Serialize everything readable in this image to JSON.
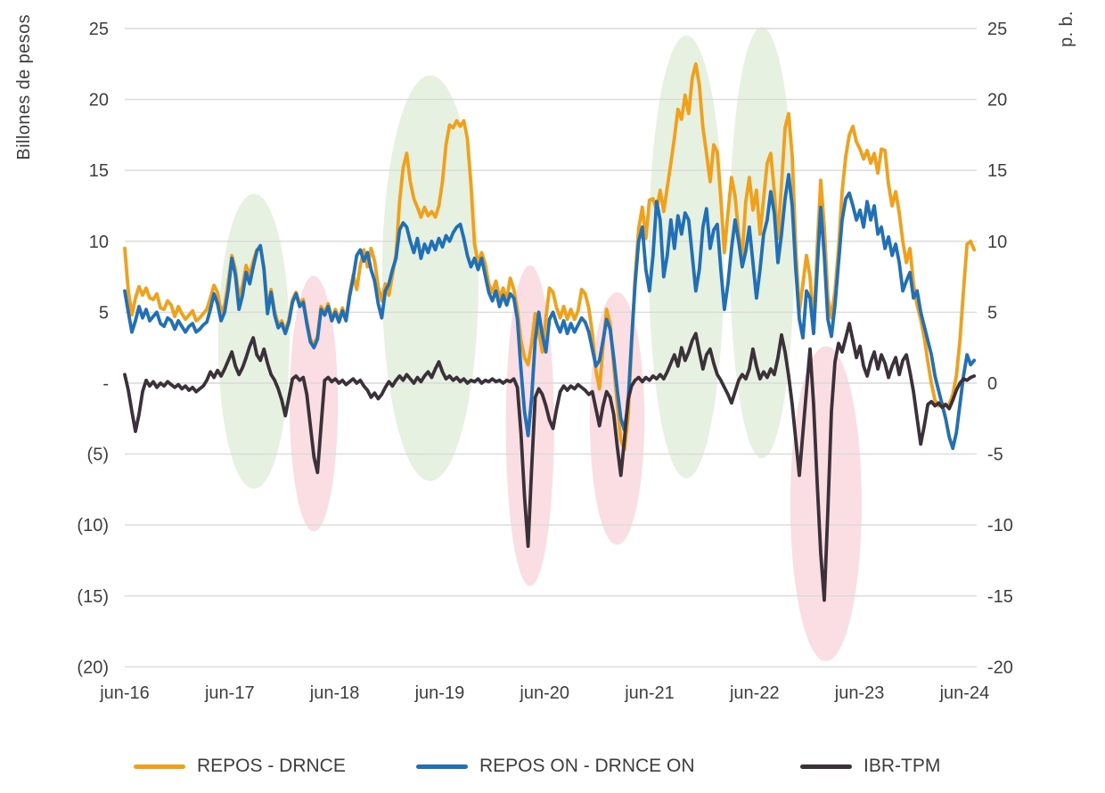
{
  "figure": {
    "left_axis_title": "Billones de pesos",
    "right_axis_title": "p. b.",
    "background": "#ffffff",
    "gridline_color": "#d9d9d9",
    "tick_text_color": "#3e3e3e"
  },
  "chart_data": {
    "type": "line",
    "title": "",
    "xlabel": "",
    "ylabel_left": "Billones de pesos",
    "ylabel_right": "p. b.",
    "grid": true,
    "legend_position": "bottom",
    "ylim": [
      -20,
      25
    ],
    "tick_values": [
      25,
      20,
      15,
      10,
      5,
      0,
      -5,
      -10,
      -15,
      -20
    ],
    "left_tick_labels": [
      "25",
      "20",
      "15",
      "10",
      "5",
      "-",
      "(5)",
      "(10)",
      "(15)",
      "(20)"
    ],
    "right_tick_labels": [
      "25",
      "20",
      "15",
      "10",
      "5",
      "0",
      "-5",
      "-10",
      "-15",
      "-20"
    ],
    "x_year_ticks": [
      0,
      1,
      2,
      3,
      4,
      5,
      6,
      7,
      8
    ],
    "x_tick_labels": [
      "jun-16",
      "jun-17",
      "jun-18",
      "jun-19",
      "jun-20",
      "jun-21",
      "jun-22",
      "jun-23",
      "jun-24"
    ],
    "t0": 0,
    "dt": 0.034,
    "series": [
      {
        "name": "REPOS - DRNCE",
        "color": "#F2A018",
        "axis": "left",
        "values": [
          9.5,
          6.5,
          4.8,
          6,
          6.8,
          6.2,
          6.7,
          6,
          5.9,
          6.3,
          5.3,
          5.2,
          5.8,
          5.5,
          4.7,
          5.4,
          4.9,
          4.5,
          4.8,
          5.1,
          4.4,
          4.6,
          4.9,
          5.2,
          6,
          6.9,
          6.4,
          5,
          5.5,
          7.2,
          9,
          8,
          6,
          6.9,
          8.3,
          7.6,
          8.6,
          9.4,
          9.6,
          8.2,
          5.2,
          6.6,
          5.1,
          4.1,
          4.4,
          3.7,
          4.5,
          5.9,
          6.4,
          5.6,
          5.9,
          4.4,
          3.1,
          2.7,
          3.3,
          5.4,
          5,
          5.6,
          4.6,
          5.2,
          4.5,
          5.3,
          4.5,
          6.3,
          7.6,
          6.6,
          8.3,
          9.4,
          8.2,
          9.5,
          8.6,
          6.8,
          5.8,
          7,
          6.2,
          7.6,
          9.1,
          12.8,
          15.2,
          16.2,
          14.2,
          13,
          12.4,
          11.7,
          12.4,
          11.8,
          12.1,
          11.7,
          12.5,
          14.2,
          16.8,
          18.2,
          18,
          18.5,
          18.1,
          18.5,
          17.2,
          14,
          9.8,
          8.5,
          9.2,
          8.4,
          7,
          6.4,
          7.2,
          6,
          6.7,
          5.9,
          7.4,
          6.6,
          5.2,
          3,
          1.8,
          1.3,
          2.8,
          4.9,
          3.6,
          2.2,
          4.6,
          6.7,
          6.4,
          5.3,
          4.6,
          5.4,
          4.5,
          5.2,
          4.5,
          5.1,
          6.6,
          6.3,
          5.3,
          3.5,
          0.9,
          -0.4,
          2.6,
          5.2,
          4.2,
          1.2,
          -1.5,
          -4,
          -4.7,
          -2.5,
          2.5,
          7.5,
          10.9,
          12.4,
          10.2,
          12.9,
          13,
          12.2,
          13.6,
          12.1,
          13.8,
          15.5,
          17.3,
          19.3,
          18.6,
          20.3,
          19,
          21.5,
          22.5,
          21,
          18,
          16.2,
          14.2,
          16.8,
          16.3,
          13,
          9.2,
          12,
          14.5,
          13.2,
          10.5,
          9,
          12.8,
          14.5,
          12.2,
          13.6,
          10.5,
          13,
          15.5,
          16.2,
          13.5,
          10.2,
          14,
          18,
          19,
          16,
          9.5,
          5,
          7,
          9,
          7.5,
          4,
          9.5,
          14.3,
          11,
          6,
          4.6,
          6.5,
          9.5,
          13.5,
          16,
          17.5,
          18.1,
          17,
          16.5,
          15.8,
          16.4,
          15.5,
          16.2,
          14.8,
          16.5,
          16.4,
          14,
          12.5,
          13.5,
          12,
          10,
          8.5,
          9.5,
          7,
          5.5,
          4.5,
          3.2,
          1.5,
          0,
          -1.2,
          -1.6,
          -1.4,
          -1.6,
          -1.5,
          -0.8,
          0.5,
          3,
          6.5,
          9.8,
          10,
          9.4
        ]
      },
      {
        "name": "REPOS ON - DRNCE ON",
        "color": "#1F70B8",
        "axis": "left",
        "values": [
          6.5,
          5,
          3.6,
          4.4,
          5.4,
          4.6,
          5.2,
          4.4,
          4.7,
          5,
          4.2,
          4,
          4.6,
          4.4,
          3.8,
          4.4,
          4,
          3.6,
          4,
          4.2,
          3.6,
          3.8,
          4.1,
          4.3,
          5.2,
          6.3,
          5.6,
          4.4,
          5,
          6.6,
          8.8,
          7.6,
          5.2,
          6.2,
          7.8,
          7,
          8.2,
          9.3,
          9.7,
          8,
          4.9,
          6.4,
          4.8,
          3.9,
          4.2,
          3.5,
          4.3,
          5.7,
          6.3,
          5.4,
          5.7,
          4.2,
          2.9,
          2.5,
          3.1,
          5.2,
          4.8,
          5.4,
          4.4,
          5,
          4.3,
          5.1,
          4.4,
          6.1,
          7.4,
          9,
          9.4,
          8.6,
          9.2,
          8,
          7.2,
          5.6,
          4.6,
          6.5,
          7,
          8,
          8.8,
          10.8,
          11.3,
          11,
          10,
          9.2,
          10.2,
          8.8,
          9.8,
          9.2,
          10,
          9.4,
          10.2,
          9.6,
          10.4,
          10,
          10.6,
          11,
          11.2,
          10.2,
          9,
          8.2,
          8.8,
          8,
          8.8,
          7.6,
          6.4,
          5.8,
          6.5,
          5.4,
          6.2,
          5.5,
          6.3,
          6,
          4.5,
          1,
          -2,
          -3.7,
          -1,
          3,
          5,
          3.4,
          2.2,
          4.5,
          5,
          4.2,
          3.6,
          4.4,
          3.5,
          4.2,
          3.6,
          4.1,
          4.6,
          4.3,
          3.6,
          2.4,
          1.2,
          1.6,
          3,
          4.5,
          3.8,
          1.8,
          -0.5,
          -2.5,
          -3.3,
          -1.5,
          3,
          7,
          10,
          11,
          8,
          6.5,
          9,
          12.8,
          11.5,
          7.5,
          9,
          11.5,
          9.5,
          11.8,
          10.5,
          12,
          11.5,
          9,
          6.5,
          8,
          11,
          12.3,
          9.5,
          10.8,
          11.2,
          8,
          5.2,
          7,
          9.5,
          11.5,
          10,
          8.2,
          9.3,
          11,
          8.5,
          6,
          8,
          10.5,
          11.5,
          13.5,
          12,
          8.5,
          10.5,
          13,
          14.7,
          12.5,
          8,
          4.5,
          3.2,
          6.5,
          6,
          3.5,
          8,
          12.4,
          9,
          4.5,
          3.3,
          5.5,
          8.5,
          11.5,
          13,
          13.4,
          12.5,
          11.5,
          12.2,
          11,
          12.8,
          11.5,
          12.5,
          10.5,
          11,
          9.5,
          10.3,
          9,
          9.8,
          8.5,
          6.5,
          7.2,
          7.8,
          6,
          6.5,
          5,
          4,
          3,
          2,
          0.5,
          -0.5,
          -1.5,
          -2.5,
          -3.8,
          -4.6,
          -3.5,
          -1.5,
          0.5,
          2,
          1.3,
          1.6
        ]
      },
      {
        "name": "IBR-TPM",
        "color": "#3B3138",
        "axis": "right",
        "values": [
          0.6,
          -0.5,
          -2,
          -3.4,
          -2.2,
          -0.6,
          0.2,
          -0.2,
          0.1,
          -0.3,
          0,
          -0.2,
          0.1,
          -0.1,
          -0.3,
          -0.1,
          -0.4,
          -0.2,
          -0.5,
          -0.3,
          -0.6,
          -0.4,
          -0.2,
          0.2,
          0.8,
          0.4,
          0.9,
          0.5,
          1,
          1.6,
          2.2,
          1.2,
          0.6,
          1.1,
          1.8,
          2.6,
          3.2,
          2,
          1.6,
          2.4,
          1.4,
          0.6,
          0.2,
          -0.4,
          -1.2,
          -2.3,
          -1,
          0.3,
          0.5,
          0.2,
          0.4,
          -0.8,
          -3,
          -5.2,
          -6.3,
          -3,
          0.2,
          0.4,
          0.1,
          0.3,
          0,
          0.2,
          -0.1,
          0.1,
          0.3,
          0,
          0.2,
          -0.2,
          -0.5,
          -1,
          -0.7,
          -1.1,
          -0.8,
          -0.3,
          0.1,
          -0.2,
          0.2,
          0.5,
          0.2,
          0.6,
          0.3,
          0,
          0.4,
          0.1,
          0.5,
          0.8,
          0.4,
          1,
          1.5,
          0.8,
          0.3,
          0.5,
          0.2,
          0.4,
          0.1,
          0.3,
          0,
          0.2,
          0.1,
          0.3,
          0,
          0.2,
          0.1,
          0.3,
          0.1,
          0.2,
          0,
          0.2,
          0.1,
          0.3,
          -0.3,
          -3.5,
          -8,
          -11.5,
          -6,
          -1,
          -0.4,
          -0.8,
          -1.6,
          -2.6,
          -3.2,
          -1.8,
          -0.6,
          -0.2,
          -0.5,
          -0.2,
          -0.4,
          -0.1,
          -0.3,
          -0.5,
          -0.8,
          -0.6,
          -1.8,
          -3,
          -1.6,
          -0.6,
          -1,
          -2.2,
          -4.5,
          -6.5,
          -4,
          -1.2,
          -0.2,
          0.2,
          0.4,
          0.1,
          0.4,
          0.2,
          0.5,
          0.3,
          0.6,
          0.3,
          0.8,
          1.4,
          2,
          1.2,
          2.5,
          1.6,
          2.2,
          3,
          3.5,
          2.2,
          1,
          2,
          2.4,
          1.4,
          0.6,
          0.2,
          -0.3,
          -0.8,
          -1.4,
          -0.6,
          0.2,
          0.6,
          0.3,
          1,
          2.4,
          1.2,
          0.3,
          0.8,
          0.4,
          1,
          0.6,
          1.8,
          3.4,
          2.2,
          0.5,
          -1.5,
          -4,
          -6.5,
          -3.5,
          -0.5,
          2.4,
          -1.5,
          -7,
          -12,
          -15.3,
          -9,
          -2,
          1.5,
          2.8,
          2.2,
          3.2,
          4.2,
          3,
          1.8,
          2.6,
          1.2,
          0.5,
          1.5,
          2.2,
          1,
          2,
          1.4,
          0.4,
          1.2,
          1.8,
          0.6,
          1.6,
          2,
          0.8,
          -0.6,
          -2.5,
          -4.3,
          -3,
          -1.5,
          -1.3,
          -1.6,
          -1.4,
          -1.7,
          -1.5,
          -1.8,
          -1.2,
          -0.5,
          0,
          0.3,
          0.2,
          0.4,
          0.5
        ]
      }
    ],
    "highlights": [
      {
        "shape": "ellipse",
        "kind": "green",
        "color": "#E7F1E1",
        "t": 1.23,
        "v": 2.95,
        "rt": 0.34,
        "rv": 10.4
      },
      {
        "shape": "ellipse",
        "kind": "pink",
        "color": "#FADEE3",
        "t": 1.8,
        "v": -1.45,
        "rt": 0.23,
        "rv": 9.0
      },
      {
        "shape": "ellipse",
        "kind": "green",
        "color": "#E7F1E1",
        "t": 2.91,
        "v": 7.4,
        "rt": 0.46,
        "rv": 14.3
      },
      {
        "shape": "ellipse",
        "kind": "pink",
        "color": "#FADEE3",
        "t": 3.86,
        "v": -3.0,
        "rt": 0.23,
        "rv": 11.3
      },
      {
        "shape": "ellipse",
        "kind": "pink",
        "color": "#FADEE3",
        "t": 4.69,
        "v": -2.5,
        "rt": 0.26,
        "rv": 8.9
      },
      {
        "shape": "ellipse",
        "kind": "green",
        "color": "#E7F1E1",
        "t": 5.35,
        "v": 8.9,
        "rt": 0.36,
        "rv": 15.6
      },
      {
        "shape": "ellipse",
        "kind": "green",
        "color": "#E7F1E1",
        "t": 6.07,
        "v": 9.9,
        "rt": 0.31,
        "rv": 15.2
      },
      {
        "shape": "ellipse",
        "kind": "pink",
        "color": "#FADEE3",
        "t": 6.68,
        "v": -8.5,
        "rt": 0.34,
        "rv": 11.1
      }
    ]
  }
}
